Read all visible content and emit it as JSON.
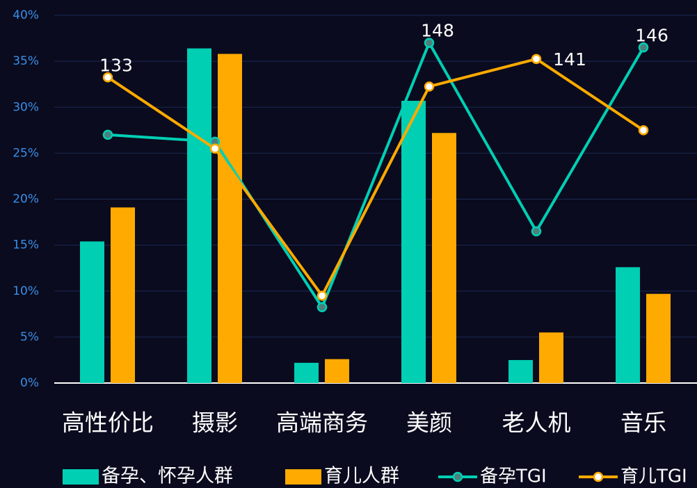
{
  "chart_data": {
    "type": "bar",
    "categories": [
      "高性价比",
      "摄影",
      "高端商务",
      "美颜",
      "老人机",
      "音乐"
    ],
    "ylim": [
      0,
      40
    ],
    "yticks": [
      {
        "value": 0,
        "label": "0%"
      },
      {
        "value": 5,
        "label": "5%"
      },
      {
        "value": 10,
        "label": "10%"
      },
      {
        "value": 15,
        "label": "15%"
      },
      {
        "value": 20,
        "label": "20%"
      },
      {
        "value": 25,
        "label": "25%"
      },
      {
        "value": 30,
        "label": "30%"
      },
      {
        "value": 35,
        "label": "35%"
      },
      {
        "value": 40,
        "label": "40%"
      }
    ],
    "y2lim": [
      0,
      160
    ],
    "grid": true,
    "legend": "bottom",
    "series": [
      {
        "name": "备孕、怀孕人群",
        "type": "bar",
        "color": "#00cfb4",
        "values": [
          15.4,
          36.4,
          2.2,
          30.7,
          2.5,
          12.6
        ]
      },
      {
        "name": "育儿人群",
        "type": "bar",
        "color": "#ffaa00",
        "values": [
          19.1,
          35.8,
          2.6,
          27.2,
          5.5,
          9.7
        ]
      },
      {
        "name": "备孕TGI",
        "type": "line",
        "axis": "y2",
        "color": "#00cfb4",
        "values": [
          108,
          105,
          33,
          148,
          66,
          146
        ],
        "value_labels": [
          null,
          null,
          null,
          "148",
          null,
          "146"
        ]
      },
      {
        "name": "育儿TGI",
        "type": "line",
        "axis": "y2",
        "color": "#ffaa00",
        "values": [
          133,
          102,
          38,
          129,
          141,
          110
        ],
        "value_labels": [
          "133",
          null,
          null,
          null,
          "141",
          null
        ]
      }
    ]
  }
}
